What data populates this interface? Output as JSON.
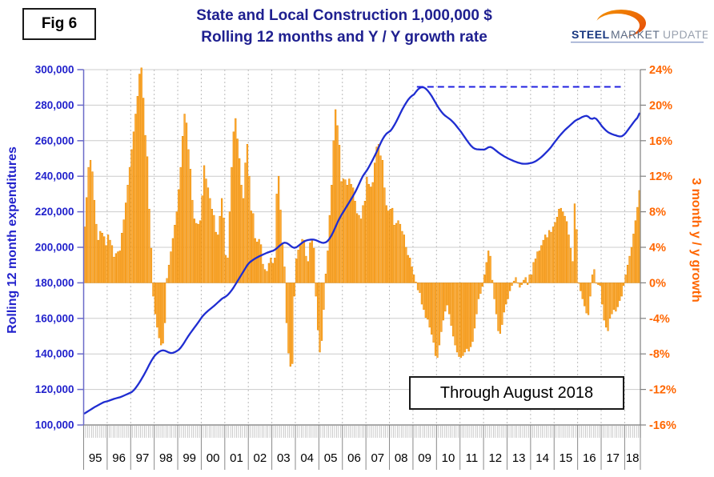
{
  "fig_label": "Fig 6",
  "title_line1": "State and Local Construction 1,000,000 $",
  "title_line2": "Rolling 12 months and Y / Y growth rate",
  "annotation_box_text": "Through August 2018",
  "logo": {
    "word1": "STEEL",
    "word2": "MARKET",
    "word3": "UPDATE"
  },
  "left_axis": {
    "title": "Rolling 12 month expenditures",
    "tick_labels": [
      "300,000",
      "280,000",
      "260,000",
      "240,000",
      "220,000",
      "200,000",
      "180,000",
      "160,000",
      "140,000",
      "120,000",
      "100,000"
    ],
    "color": "#2222cc"
  },
  "right_axis": {
    "title": "3 month y / y growth",
    "tick_labels": [
      "24%",
      "20%",
      "16%",
      "12%",
      "8%",
      "4%",
      "0%",
      "-4%",
      "-8%",
      "-12%",
      "-16%"
    ],
    "color": "#ff6600"
  },
  "x_axis": {
    "year_labels": [
      "95",
      "96",
      "97",
      "98",
      "99",
      "00",
      "01",
      "02",
      "03",
      "04",
      "05",
      "06",
      "07",
      "08",
      "09",
      "10",
      "11",
      "12",
      "13",
      "14",
      "15",
      "16",
      "17",
      "18"
    ]
  },
  "colors": {
    "bar_fill": "#FFAA33",
    "bar_stroke": "#E88A00",
    "line_blue": "#1F2DD1",
    "dashed_blue": "#2020E0",
    "grid": "#cccccc",
    "year_grid": "#bbbbbb",
    "title_navy": "#1f2090"
  },
  "chart_data": {
    "type": "bar",
    "note": "monthly data Jan-1995 through Aug-2018; bars on right axis (%), line on left axis (thousands of 1,000,000 $ units as labeled)",
    "x_start": "1995-01",
    "x_end": "2018-08",
    "left_ylim": [
      100000,
      300000
    ],
    "right_ylim": [
      -16,
      24
    ],
    "series": [
      {
        "name": "3 month y / y growth",
        "type": "bar",
        "axis": "right",
        "unit": "%",
        "values": [
          6.3,
          9.6,
          13.0,
          13.8,
          12.5,
          9.3,
          6.6,
          4.8,
          5.8,
          5.6,
          5.2,
          4.2,
          5.4,
          4.8,
          4.2,
          2.9,
          3.3,
          3.5,
          3.6,
          5.6,
          7.1,
          9.0,
          11.0,
          13.0,
          15.0,
          17.0,
          19.0,
          21.0,
          23.5,
          24.2,
          20.8,
          16.6,
          14.2,
          8.3,
          3.9,
          -1.5,
          -3.5,
          -5.0,
          -6.2,
          -7.0,
          -6.8,
          -4.5,
          0.5,
          2.0,
          3.5,
          5.0,
          6.5,
          8.0,
          10.5,
          13.0,
          16.5,
          19.0,
          18.0,
          15.0,
          12.8,
          9.3,
          7.2,
          6.7,
          6.6,
          7.0,
          9.8,
          13.2,
          11.7,
          10.7,
          9.5,
          8.3,
          7.6,
          5.7,
          5.4,
          7.5,
          9.5,
          7.3,
          3.1,
          2.8,
          8.0,
          13.0,
          17.0,
          18.5,
          16.2,
          14.0,
          11.0,
          9.5,
          13.5,
          15.6,
          12.0,
          8.1,
          7.8,
          5.0,
          4.6,
          4.9,
          4.3,
          2.1,
          1.5,
          1.3,
          2.2,
          2.8,
          2.2,
          2.8,
          10.0,
          12.0,
          8.2,
          4.3,
          1.8,
          -4.5,
          -7.9,
          -9.4,
          -9.1,
          -1.5,
          2.7,
          3.7,
          4.2,
          4.9,
          4.8,
          3.0,
          2.4,
          4.5,
          4.9,
          3.9,
          -1.5,
          -5.3,
          -7.8,
          -6.5,
          -3.0,
          1.0,
          3.6,
          7.6,
          11.0,
          16.0,
          19.5,
          17.7,
          15.5,
          11.4,
          11.7,
          11.6,
          11.0,
          11.7,
          11.1,
          10.7,
          9.2,
          7.8,
          7.6,
          7.2,
          8.7,
          9.2,
          11.9,
          11.1,
          10.8,
          11.3,
          13.5,
          15.3,
          15.6,
          14.3,
          13.8,
          10.7,
          8.7,
          8.1,
          8.3,
          8.4,
          6.5,
          6.7,
          7.0,
          6.6,
          5.8,
          5.4,
          4.0,
          3.1,
          2.8,
          1.8,
          0.9,
          0.1,
          -0.8,
          -1.1,
          -2.4,
          -3.0,
          -3.9,
          -4.1,
          -5.0,
          -5.8,
          -6.7,
          -8.2,
          -8.4,
          -7.0,
          -5.5,
          -4.2,
          -3.2,
          -2.5,
          -3.5,
          -4.8,
          -6.0,
          -7.0,
          -7.8,
          -8.3,
          -8.4,
          -8.2,
          -7.8,
          -7.4,
          -7.7,
          -7.2,
          -6.6,
          -5.1,
          -3.5,
          -1.8,
          -1.2,
          -0.4,
          0.9,
          2.3,
          3.6,
          3.0,
          0.3,
          -1.8,
          -3.5,
          -5.4,
          -5.7,
          -4.7,
          -3.3,
          -2.4,
          -1.8,
          -0.9,
          -0.3,
          0.2,
          0.6,
          0.0,
          -0.5,
          -0.2,
          0.3,
          0.6,
          -0.2,
          0.9,
          0.9,
          2.3,
          2.7,
          3.5,
          3.6,
          4.2,
          4.8,
          5.4,
          5.1,
          5.9,
          5.7,
          6.3,
          6.8,
          7.4,
          8.3,
          8.4,
          8.0,
          7.5,
          6.9,
          5.4,
          3.9,
          2.4,
          8.9,
          6.0,
          0.0,
          -0.9,
          -1.8,
          -2.6,
          -3.4,
          -3.6,
          -1.5,
          0.9,
          1.5,
          0.0,
          -0.2,
          -0.3,
          -2.4,
          -4.2,
          -5.0,
          -5.4,
          -4.0,
          -3.5,
          -3.0,
          -3.2,
          -2.7,
          -2.0,
          -1.5,
          -0.3,
          0.9,
          2.0,
          3.0,
          4.0,
          5.5,
          7.0,
          8.5,
          10.4
        ]
      },
      {
        "name": "Rolling 12 month expenditures",
        "type": "line",
        "axis": "left",
        "unit": "thousands",
        "values": [
          106.5,
          107.2,
          107.9,
          108.6,
          109.3,
          110.0,
          110.6,
          111.2,
          111.8,
          112.4,
          112.9,
          113.2,
          113.5,
          113.9,
          114.3,
          114.7,
          115.0,
          115.3,
          115.6,
          116.0,
          116.5,
          117.0,
          117.5,
          118.0,
          118.5,
          119.5,
          120.8,
          122.3,
          124.0,
          125.8,
          127.7,
          129.7,
          131.8,
          134.0,
          136.0,
          137.8,
          139.3,
          140.3,
          141.2,
          141.8,
          142.0,
          141.8,
          141.3,
          140.8,
          140.5,
          140.6,
          141.0,
          141.6,
          142.3,
          143.5,
          145.0,
          146.7,
          148.5,
          150.2,
          151.8,
          153.3,
          154.8,
          156.3,
          157.8,
          159.4,
          161.0,
          162.2,
          163.3,
          164.3,
          165.2,
          166.1,
          167.0,
          168.0,
          169.0,
          170.0,
          171.0,
          171.7,
          172.3,
          173.2,
          174.4,
          175.8,
          177.4,
          179.2,
          181.0,
          182.8,
          184.6,
          186.4,
          188.2,
          190.0,
          191.3,
          192.2,
          193.0,
          193.7,
          194.3,
          194.9,
          195.4,
          195.9,
          196.4,
          196.9,
          197.3,
          197.7,
          198.0,
          198.6,
          199.4,
          200.4,
          201.4,
          202.2,
          202.6,
          202.4,
          201.8,
          200.9,
          200.1,
          199.7,
          200.0,
          200.8,
          201.7,
          202.6,
          203.3,
          203.8,
          204.1,
          204.3,
          204.4,
          204.3,
          204.0,
          203.5,
          203.0,
          202.6,
          202.5,
          202.8,
          203.6,
          205.0,
          206.8,
          209.0,
          211.5,
          214.0,
          216.2,
          218.2,
          220.0,
          221.8,
          223.6,
          225.4,
          227.2,
          229.0,
          231.0,
          233.2,
          235.6,
          238.0,
          240.2,
          241.8,
          243.3,
          245.2,
          247.2,
          249.3,
          251.5,
          253.8,
          256.2,
          258.6,
          260.8,
          262.6,
          264.0,
          264.8,
          265.5,
          267.0,
          268.8,
          270.8,
          273.0,
          275.3,
          277.5,
          279.5,
          281.3,
          283.0,
          284.3,
          285.3,
          286.0,
          287.5,
          288.8,
          289.7,
          290.1,
          290.0,
          289.3,
          288.2,
          286.8,
          285.2,
          283.3,
          281.4,
          279.5,
          277.8,
          276.3,
          275.0,
          274.0,
          273.2,
          272.4,
          271.5,
          270.4,
          269.2,
          267.8,
          266.4,
          265.0,
          263.4,
          261.8,
          260.2,
          258.7,
          257.3,
          256.2,
          255.5,
          255.2,
          255.1,
          255.0,
          255.0,
          255.0,
          255.6,
          256.3,
          256.5,
          256.0,
          255.2,
          254.3,
          253.4,
          252.6,
          251.9,
          251.2,
          250.6,
          250.0,
          249.5,
          249.0,
          248.5,
          248.1,
          247.7,
          247.4,
          247.1,
          247.0,
          247.0,
          247.1,
          247.3,
          247.5,
          247.9,
          248.4,
          249.1,
          249.9,
          250.8,
          251.8,
          252.9,
          254.0,
          255.2,
          256.5,
          258.0,
          259.5,
          260.9,
          262.3,
          263.6,
          264.8,
          266.0,
          267.0,
          268.0,
          269.0,
          270.0,
          271.0,
          271.7,
          272.2,
          272.8,
          273.4,
          273.8,
          274.0,
          273.5,
          272.5,
          272.3,
          272.8,
          272.3,
          271.0,
          269.5,
          268.0,
          266.8,
          265.7,
          264.8,
          264.2,
          263.7,
          263.3,
          263.0,
          262.6,
          262.4,
          262.5,
          263.2,
          264.3,
          265.8,
          267.3,
          268.8,
          270.3,
          271.7,
          272.9,
          275.3
        ]
      },
      {
        "name": "peak reference line",
        "type": "dashed-line",
        "axis": "left",
        "value_thousands": 290.3,
        "from": "2009-03",
        "to": "2017-11"
      }
    ]
  }
}
